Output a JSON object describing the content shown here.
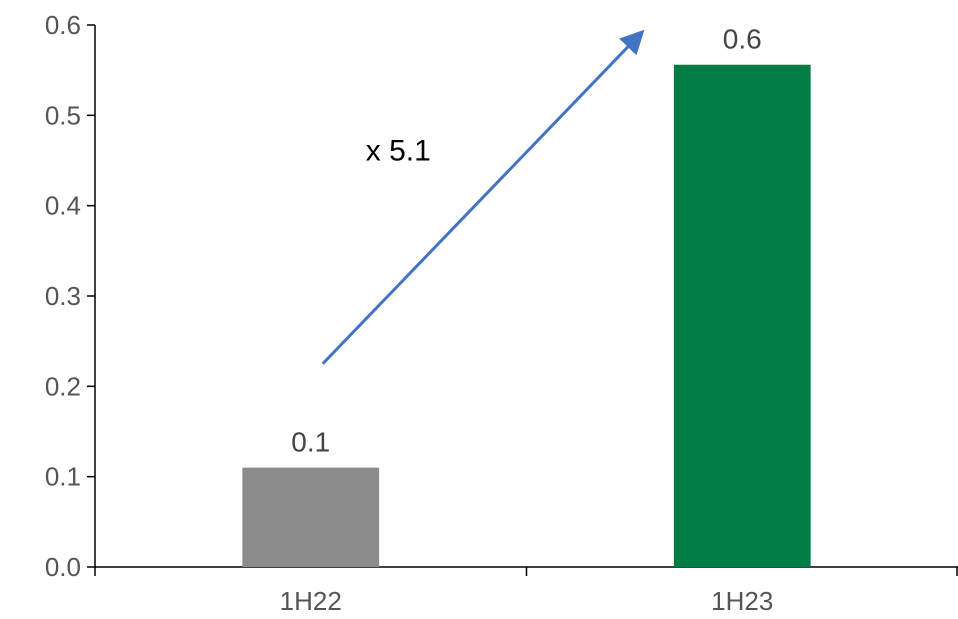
{
  "chart_data": {
    "type": "bar",
    "title": "",
    "xlabel": "",
    "ylabel": "",
    "categories": [
      "1H22",
      "1H23"
    ],
    "values": [
      0.11,
      0.556
    ],
    "data_labels": [
      "0.1",
      "0.6"
    ],
    "colors": [
      "#8c8c8c",
      "#027c45"
    ],
    "ylim": [
      0,
      0.6
    ],
    "yticks": [
      "0.0",
      "0.1",
      "0.2",
      "0.3",
      "0.4",
      "0.5",
      "0.6"
    ],
    "grid": false,
    "legend": "none",
    "annotation": {
      "text": "x 5.1",
      "arrow_color": "#4472c4",
      "arrow_from": {
        "category": "1H22",
        "value": 0.225
      },
      "arrow_to": {
        "category": "1H23",
        "value": 0.59
      }
    }
  }
}
